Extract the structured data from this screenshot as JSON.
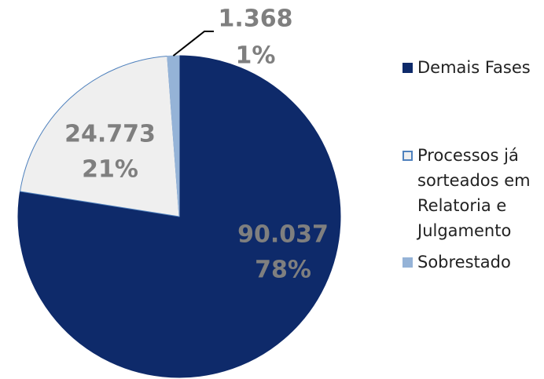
{
  "chart_data": {
    "type": "pie",
    "categories": [
      "Demais Fases",
      "Processos já sorteados em Relatoria e Julgamento",
      "Sobrestado"
    ],
    "values": [
      90037,
      24773,
      1368
    ],
    "value_labels": [
      "90.037",
      "24.773",
      "1.368"
    ],
    "percent_labels": [
      "78%",
      "21%",
      "1%"
    ],
    "colors": [
      "#0e2a6a",
      "#efefef",
      "#95b3d7"
    ],
    "legend": "right"
  }
}
